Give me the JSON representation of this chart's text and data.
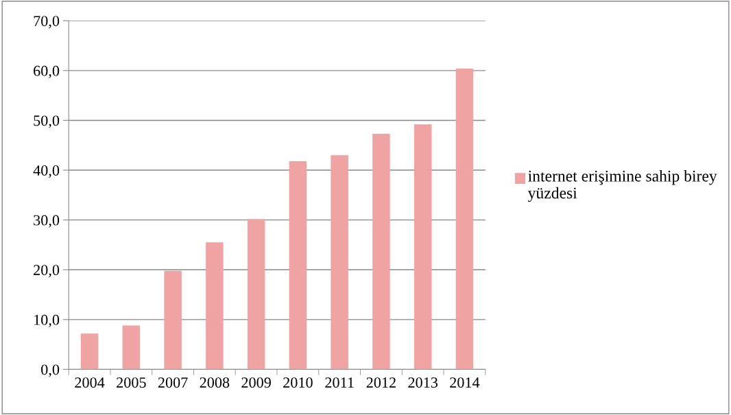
{
  "chart_data": {
    "type": "bar",
    "categories": [
      "2004",
      "2005",
      "2007",
      "2008",
      "2009",
      "2010",
      "2011",
      "2012",
      "2013",
      "2014"
    ],
    "series": [
      {
        "name": "internet erişimine sahip birey yüzdesi",
        "color": "#f0a3a3",
        "values": [
          7.2,
          8.8,
          19.8,
          25.5,
          30.2,
          41.8,
          43.0,
          47.3,
          49.2,
          60.4
        ]
      }
    ],
    "ylim": [
      0,
      70
    ],
    "yticks": [
      {
        "value": 0,
        "label": "0,0"
      },
      {
        "value": 10,
        "label": "10,0"
      },
      {
        "value": 20,
        "label": "20,0"
      },
      {
        "value": 30,
        "label": "30,0"
      },
      {
        "value": 40,
        "label": "40,0"
      },
      {
        "value": 50,
        "label": "50,0"
      },
      {
        "value": 60,
        "label": "60,0"
      },
      {
        "value": 70,
        "label": "70,0"
      }
    ],
    "grid": "y",
    "legend": "right"
  }
}
